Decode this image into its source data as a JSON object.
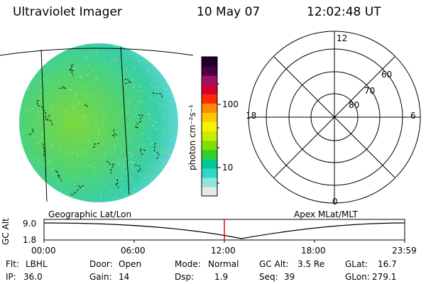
{
  "header": {
    "instrument": "Ultraviolet Imager",
    "date": "10 May 07",
    "time": "12:02:48 UT"
  },
  "image_panel": {
    "caption": "Geographic Lat/Lon"
  },
  "colorbar": {
    "unit_label": "photon cm⁻²s⁻¹",
    "tick_labels": [
      "100",
      "10"
    ],
    "colors": [
      "#e8e8e8",
      "#8fe4dc",
      "#30d8c8",
      "#00c890",
      "#30d030",
      "#7ee000",
      "#c8ec00",
      "#f4f400",
      "#ffc800",
      "#ff8c00",
      "#ff2a00",
      "#d40030",
      "#a01060",
      "#4a0048",
      "#1a0028"
    ]
  },
  "polar_plot": {
    "caption": "Apex MLat/MLT",
    "mlt_labels": {
      "top": "12",
      "left": "18",
      "right": "6",
      "bottom": "0"
    },
    "lat_labels": [
      "60",
      "70",
      "80"
    ]
  },
  "timeline": {
    "y_axis_label": "GC Alt",
    "y_ticks": [
      "9.0",
      "1.8"
    ],
    "x_ticks": [
      "00:00",
      "06:00",
      "12:00",
      "18:00",
      "23:59"
    ],
    "colors": {
      "curve": "#000000",
      "marker": "#cc0000"
    }
  },
  "status": {
    "flt": {
      "label": "Flt:",
      "value": "LBHL"
    },
    "ip": {
      "label": "IP:",
      "value": "36.0"
    },
    "door": {
      "label": "Door:",
      "value": "Open"
    },
    "gain": {
      "label": "Gain:",
      "value": "14"
    },
    "mode": {
      "label": "Mode:",
      "value": "Normal"
    },
    "dsp": {
      "label": "Dsp:",
      "value": "1.9"
    },
    "gcalt": {
      "label": "GC Alt:",
      "value": "3.5 Re"
    },
    "seq": {
      "label": "Seq:",
      "value": "39"
    },
    "glat": {
      "label": "GLat:",
      "value": "16.7"
    },
    "glon": {
      "label": "GLon:",
      "value": "279.1"
    }
  }
}
